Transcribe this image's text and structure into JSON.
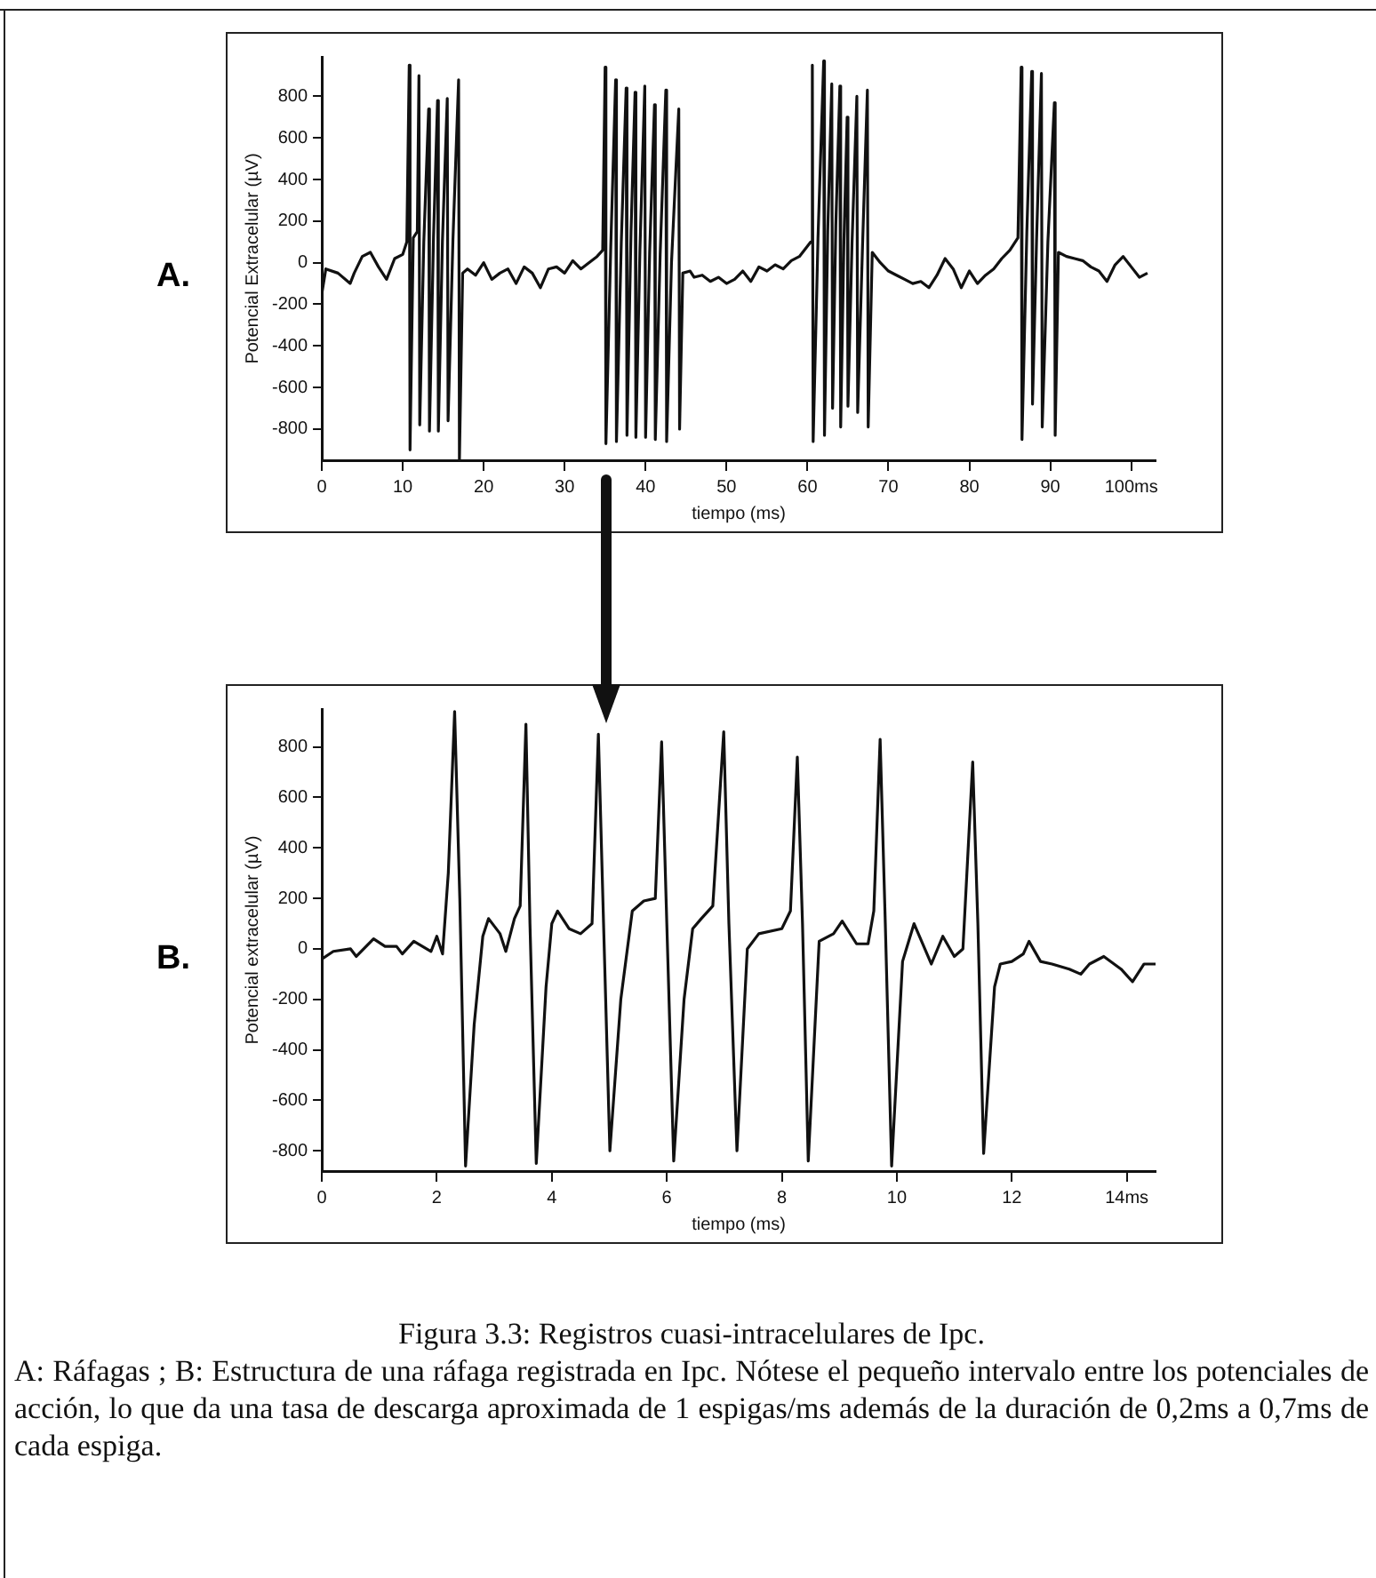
{
  "chart_data": [
    {
      "type": "line",
      "annotations": [
        "A."
      ],
      "xlabel": "tiempo (ms)",
      "ylabel": "Potencial Extracelular (µV)",
      "xlim": [
        0,
        103
      ],
      "ylim": [
        -950,
        990
      ],
      "xticks": [
        0,
        10,
        20,
        30,
        40,
        50,
        60,
        70,
        80,
        90,
        {
          "value": 100,
          "label": "100ms"
        }
      ],
      "yticks": [
        -800,
        -600,
        -400,
        -200,
        0,
        200,
        400,
        600,
        800
      ],
      "grid": false,
      "legend": false,
      "marker": "none",
      "line_style": "solid",
      "series": [
        {
          "color": "#111111",
          "x": [
            0,
            0.5,
            2,
            3.5,
            4,
            5,
            6,
            7,
            8,
            9,
            10,
            10.5,
            10.8,
            10.9,
            11.3,
            11.8,
            12.0,
            12.1,
            12.6,
            13.2,
            13.3,
            13.8,
            14.3,
            14.4,
            14.9,
            15.5,
            15.6,
            16.2,
            16.9,
            17.0,
            17.4,
            18,
            19,
            20,
            21,
            22,
            23,
            24,
            25,
            26,
            27,
            28,
            29,
            30,
            31,
            32,
            33,
            34,
            34.7,
            35.0,
            35.1,
            35.7,
            36.3,
            36.4,
            37.0,
            37.6,
            37.7,
            38.2,
            38.7,
            38.8,
            39.3,
            39.9,
            40.0,
            40.5,
            41.1,
            41.2,
            41.8,
            42.5,
            42.6,
            43.2,
            44.1,
            44.2,
            44.6,
            45.5,
            46,
            47,
            48,
            49,
            50,
            51,
            52,
            53,
            54,
            55,
            56,
            57,
            58,
            59,
            60,
            60.4,
            60.6,
            60.7,
            61.3,
            62.0,
            62.1,
            62.5,
            63.0,
            63.1,
            63.5,
            64.0,
            64.1,
            64.5,
            64.9,
            65.0,
            65.5,
            66.1,
            66.2,
            66.8,
            67.4,
            67.5,
            68,
            69,
            70,
            71,
            72,
            73,
            74,
            75,
            76,
            77,
            78,
            79,
            80,
            81,
            82,
            83,
            84,
            85,
            86,
            86.4,
            86.5,
            87.1,
            87.7,
            87.8,
            88.3,
            88.9,
            89.0,
            89.7,
            90.5,
            90.6,
            91,
            92,
            93,
            94,
            95,
            96,
            97,
            98,
            99,
            100,
            101,
            102
          ],
          "values": [
            -150,
            -30,
            -50,
            -100,
            -50,
            30,
            50,
            -20,
            -80,
            20,
            40,
            100,
            950,
            -900,
            120,
            150,
            900,
            -780,
            100,
            740,
            -810,
            120,
            780,
            -810,
            100,
            790,
            -760,
            110,
            880,
            -950,
            -50,
            -30,
            -60,
            0,
            -80,
            -50,
            -30,
            -100,
            -20,
            -50,
            -120,
            -30,
            -20,
            -50,
            10,
            -30,
            0,
            30,
            60,
            940,
            -870,
            80,
            880,
            -860,
            100,
            840,
            -830,
            150,
            820,
            -840,
            60,
            850,
            -840,
            50,
            760,
            -850,
            40,
            830,
            -860,
            0,
            740,
            -800,
            -50,
            -40,
            -70,
            -60,
            -90,
            -70,
            -100,
            -80,
            -40,
            -90,
            -20,
            -40,
            -10,
            -30,
            10,
            30,
            80,
            100,
            950,
            -860,
            120,
            970,
            -830,
            150,
            860,
            -700,
            180,
            850,
            -790,
            100,
            700,
            -690,
            90,
            800,
            -720,
            80,
            830,
            -790,
            50,
            0,
            -40,
            -60,
            -80,
            -100,
            -90,
            -120,
            -60,
            20,
            -30,
            -120,
            -40,
            -100,
            -60,
            -30,
            20,
            60,
            120,
            940,
            -850,
            150,
            920,
            -680,
            110,
            910,
            -790,
            100,
            770,
            -830,
            50,
            30,
            20,
            10,
            -20,
            -40,
            -90,
            -10,
            30,
            -20,
            -70,
            -50
          ]
        }
      ]
    },
    {
      "type": "line",
      "annotations": [
        "B.",
        "Figura 3.3: Registros cuasi-intracelulares de Ipc.",
        "A: Ráfagas ; B: Estructura de una ráfaga registrada en Ipc. Nótese el pequeño intervalo entre los potenciales de acción, lo que da una tasa de descarga aproximada de 1 espigas/ms además de la duración de 0,2ms a 0,7ms de cada espiga."
      ],
      "xlabel": "tiempo (ms)",
      "ylabel": "Potencial extracelular (µV)",
      "xlim": [
        0,
        14.5
      ],
      "ylim": [
        -880,
        950
      ],
      "xticks": [
        0,
        2,
        4,
        6,
        8,
        10,
        12,
        {
          "value": 14,
          "label": "14ms"
        }
      ],
      "yticks": [
        -800,
        -600,
        -400,
        -200,
        0,
        200,
        400,
        600,
        800
      ],
      "grid": false,
      "legend": false,
      "marker": "none",
      "line_style": "solid",
      "series": [
        {
          "color": "#111111",
          "x": [
            0,
            0.2,
            0.5,
            0.6,
            0.9,
            1.1,
            1.3,
            1.4,
            1.6,
            1.9,
            2.0,
            2.1,
            2.2,
            2.31,
            2.4,
            2.5,
            2.65,
            2.8,
            2.9,
            3.1,
            3.2,
            3.35,
            3.45,
            3.55,
            3.62,
            3.73,
            3.9,
            4.0,
            4.1,
            4.3,
            4.5,
            4.7,
            4.81,
            4.9,
            5.01,
            5.2,
            5.4,
            5.6,
            5.8,
            5.91,
            6.0,
            6.12,
            6.3,
            6.45,
            6.6,
            6.8,
            6.99,
            7.08,
            7.22,
            7.4,
            7.6,
            8.0,
            8.15,
            8.27,
            8.36,
            8.46,
            8.65,
            8.9,
            9.05,
            9.3,
            9.5,
            9.6,
            9.71,
            9.8,
            9.91,
            10.1,
            10.3,
            10.6,
            10.8,
            11.0,
            11.15,
            11.32,
            11.41,
            11.51,
            11.7,
            11.8,
            12.0,
            12.2,
            12.3,
            12.5,
            12.7,
            13.0,
            13.2,
            13.35,
            13.6,
            13.9,
            14.1,
            14.3,
            14.5
          ],
          "values": [
            -40,
            -10,
            0,
            -30,
            40,
            10,
            10,
            -20,
            30,
            -10,
            50,
            -20,
            300,
            940,
            200,
            -860,
            -300,
            50,
            120,
            60,
            -10,
            120,
            170,
            890,
            100,
            -850,
            -150,
            100,
            150,
            80,
            60,
            100,
            850,
            100,
            -800,
            -200,
            150,
            190,
            200,
            820,
            100,
            -840,
            -200,
            80,
            120,
            170,
            860,
            100,
            -800,
            0,
            60,
            80,
            150,
            760,
            100,
            -840,
            30,
            60,
            110,
            20,
            20,
            150,
            830,
            100,
            -860,
            -50,
            100,
            -60,
            50,
            -30,
            0,
            740,
            100,
            -810,
            -150,
            -60,
            -50,
            -20,
            30,
            -50,
            -60,
            -80,
            -100,
            -60,
            -30,
            -80,
            -130,
            -60,
            -60
          ]
        }
      ]
    }
  ]
}
